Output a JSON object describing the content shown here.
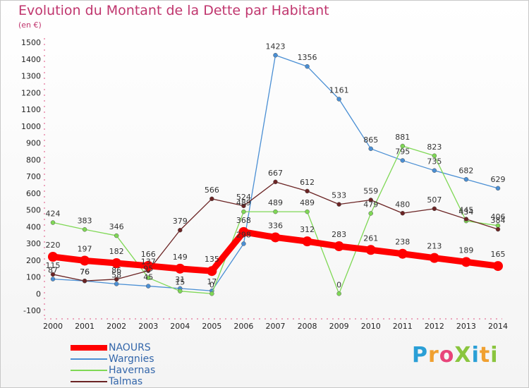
{
  "title": "Evolution du Montant de la Dette par Habitant",
  "unit_label": "(en €)",
  "brand": "ProXiti",
  "chart_data": {
    "type": "line",
    "title": "Evolution du Montant de la Dette par Habitant",
    "ylabel": "(en €)",
    "xlabel": "",
    "ylim": [
      -100,
      1500
    ],
    "yticks": [
      -100,
      0,
      100,
      200,
      300,
      400,
      500,
      600,
      700,
      800,
      900,
      1000,
      1100,
      1200,
      1300,
      1400,
      1500
    ],
    "categories": [
      "2000",
      "2001",
      "2002",
      "2003",
      "2004",
      "2005",
      "2006",
      "2007",
      "2008",
      "2009",
      "2010",
      "2011",
      "2012",
      "2013",
      "2014"
    ],
    "grid": false,
    "legend_position": "bottom-left",
    "series": [
      {
        "name": "NAOURS",
        "color": "#ff0000",
        "values": [
          220,
          197,
          182,
          166,
          149,
          135,
          368,
          336,
          312,
          283,
          261,
          238,
          213,
          189,
          165
        ]
      },
      {
        "name": "Wargnies",
        "color": "#4a8fd4",
        "values": [
          87,
          76,
          58,
          45,
          31,
          17,
          298,
          1423,
          1356,
          1161,
          865,
          795,
          735,
          682,
          629
        ]
      },
      {
        "name": "Havernas",
        "color": "#7fd855",
        "values": [
          424,
          383,
          346,
          95,
          15,
          0,
          489,
          489,
          489,
          0,
          479,
          881,
          823,
          434,
          406
        ]
      },
      {
        "name": "Talmas",
        "color": "#6b2424",
        "values": [
          115,
          76,
          86,
          137,
          379,
          566,
          524,
          667,
          612,
          533,
          559,
          480,
          507,
          445,
          384
        ]
      }
    ]
  }
}
